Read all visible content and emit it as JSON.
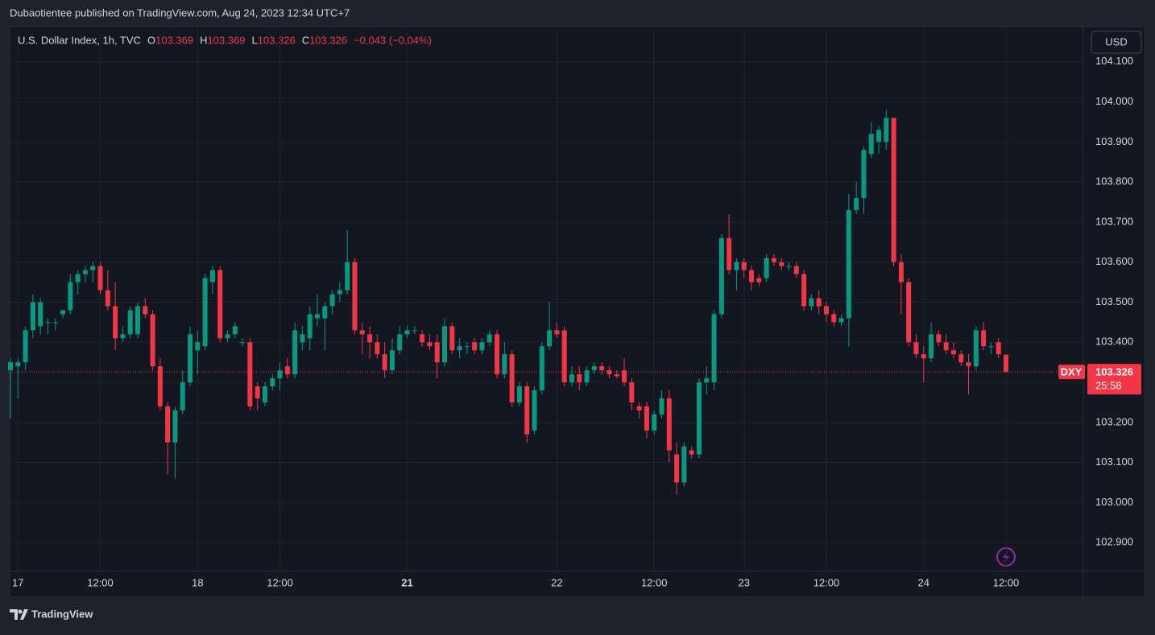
{
  "header": "Dubaotientee published on TradingView.com, Aug 24, 2023 12:34 UTC+7",
  "footer": "TradingView",
  "chart_data": {
    "type": "candlestick",
    "title": "U.S. Dollar Index, 1h, TVC",
    "legend_keys": [
      "O",
      "H",
      "L",
      "C"
    ],
    "change": "−0.043 (−0.04%)",
    "symbol": "DXY",
    "countdown": "25:58",
    "currency": "USD",
    "up_color": "#089981",
    "down_color": "#f23645",
    "grid": true,
    "categories": [
      null,
      "17",
      null,
      null,
      null,
      null,
      null,
      null,
      null,
      null,
      null,
      null,
      "12:00",
      null,
      null,
      null,
      null,
      null,
      null,
      null,
      null,
      null,
      null,
      null,
      null,
      "18",
      null,
      null,
      null,
      null,
      null,
      null,
      null,
      null,
      null,
      null,
      "12:00",
      null,
      null,
      null,
      null,
      null,
      null,
      null,
      null,
      null,
      null,
      null,
      null,
      null,
      null,
      null,
      null,
      "21",
      null,
      null,
      null,
      null,
      null,
      null,
      null,
      null,
      null,
      null,
      null,
      null,
      null,
      null,
      null,
      null,
      null,
      null,
      null,
      "22",
      null,
      null,
      null,
      null,
      null,
      null,
      null,
      null,
      null,
      null,
      null,
      null,
      "12:00",
      null,
      null,
      null,
      null,
      null,
      null,
      null,
      null,
      null,
      null,
      null,
      "23",
      null,
      null,
      null,
      null,
      null,
      null,
      null,
      null,
      null,
      null,
      "12:00",
      null,
      null,
      null,
      null,
      null,
      null,
      null,
      null,
      null,
      null,
      null,
      null,
      "24",
      null,
      null,
      null,
      null,
      null,
      null,
      null,
      null,
      null,
      null,
      "12:00"
    ],
    "bold_categories": [
      "21"
    ],
    "series": [
      {
        "open": [
          103.33,
          103.34,
          103.35,
          103.43,
          103.44,
          103.45,
          103.45,
          103.47,
          103.48,
          103.55,
          103.57,
          103.58,
          103.59,
          103.53,
          103.49,
          103.41,
          103.42,
          103.42,
          103.49,
          103.47,
          103.34,
          103.24,
          103.15,
          103.23,
          103.3,
          103.38,
          103.39,
          103.55,
          103.58,
          103.41,
          103.42,
          103.4,
          103.4,
          103.29,
          103.25,
          103.29,
          103.31,
          103.34,
          103.32,
          103.4,
          103.41,
          103.46,
          103.46,
          103.49,
          103.52,
          103.53,
          103.6,
          103.43,
          103.42,
          103.4,
          103.37,
          103.33,
          103.38,
          103.42,
          103.43,
          103.42,
          103.4,
          103.4,
          103.35,
          103.44,
          103.38,
          103.39,
          103.4,
          103.38,
          103.4,
          103.42,
          103.32,
          103.37,
          103.25,
          103.29,
          103.18,
          103.28,
          103.39,
          103.43,
          103.43,
          103.3,
          103.32,
          103.3,
          103.33,
          103.34,
          103.33,
          103.32,
          103.33,
          103.3,
          103.24,
          103.24,
          103.18,
          103.22,
          103.26,
          103.12,
          103.05,
          103.13,
          103.12,
          103.3,
          103.3,
          103.47,
          103.66,
          103.58,
          103.6,
          103.58,
          103.56,
          103.56,
          103.61,
          103.6,
          103.59,
          103.59,
          103.57,
          103.49,
          103.51,
          103.49,
          103.47,
          103.45,
          103.46,
          103.73,
          103.76,
          103.87,
          103.9,
          103.9,
          103.96,
          103.6,
          103.55,
          103.4,
          103.37,
          103.36,
          103.42,
          103.4,
          103.38,
          103.37,
          103.35,
          103.34,
          103.43,
          103.39,
          103.4,
          103.369
        ],
        "high": [
          103.36,
          103.36,
          103.44,
          103.52,
          103.51,
          103.46,
          103.46,
          103.48,
          103.57,
          103.58,
          103.59,
          103.6,
          103.6,
          103.58,
          103.55,
          103.44,
          103.49,
          103.5,
          103.51,
          103.48,
          103.36,
          103.25,
          103.24,
          103.33,
          103.44,
          103.43,
          103.57,
          103.59,
          103.59,
          103.43,
          103.45,
          103.41,
          103.41,
          103.3,
          103.3,
          103.32,
          103.35,
          103.36,
          103.45,
          103.44,
          103.49,
          103.52,
          103.5,
          103.53,
          103.55,
          103.68,
          103.61,
          103.45,
          103.44,
          103.42,
          103.4,
          103.41,
          103.44,
          103.44,
          103.44,
          103.43,
          103.42,
          103.42,
          103.46,
          103.45,
          103.41,
          103.4,
          103.41,
          103.41,
          103.43,
          103.43,
          103.4,
          103.38,
          103.3,
          103.3,
          103.29,
          103.4,
          103.5,
          103.45,
          103.44,
          103.34,
          103.34,
          103.34,
          103.35,
          103.35,
          103.34,
          103.33,
          103.36,
          103.31,
          103.25,
          103.25,
          103.23,
          103.28,
          103.28,
          103.15,
          103.15,
          103.14,
          103.31,
          103.34,
          103.48,
          103.67,
          103.72,
          103.61,
          103.61,
          103.59,
          103.57,
          103.62,
          103.62,
          103.61,
          103.6,
          103.6,
          103.58,
          103.52,
          103.53,
          103.5,
          103.48,
          103.47,
          103.77,
          103.8,
          103.89,
          103.95,
          103.94,
          103.98,
          103.96,
          103.62,
          103.56,
          103.42,
          103.39,
          103.45,
          103.43,
          103.42,
          103.4,
          103.38,
          103.37,
          103.44,
          103.45,
          103.4,
          103.41,
          103.369
        ],
        "low": [
          103.21,
          103.26,
          103.33,
          103.41,
          103.42,
          103.42,
          103.43,
          103.46,
          103.47,
          103.52,
          103.55,
          103.55,
          103.52,
          103.48,
          103.38,
          103.4,
          103.41,
          103.41,
          103.46,
          103.33,
          103.23,
          103.07,
          103.06,
          103.22,
          103.29,
          103.32,
          103.38,
          103.52,
          103.4,
          103.4,
          103.41,
          103.39,
          103.23,
          103.23,
          103.24,
          103.28,
          103.28,
          103.31,
          103.31,
          103.38,
          103.38,
          103.44,
          103.38,
          103.47,
          103.5,
          103.52,
          103.42,
          103.37,
          103.36,
          103.36,
          103.31,
          103.32,
          103.37,
          103.41,
          103.42,
          103.39,
          103.38,
          103.31,
          103.34,
          103.37,
          103.36,
          103.37,
          103.37,
          103.37,
          103.39,
          103.31,
          103.31,
          103.24,
          103.24,
          103.15,
          103.17,
          103.27,
          103.38,
          103.41,
          103.29,
          103.29,
          103.28,
          103.29,
          103.32,
          103.32,
          103.31,
          103.31,
          103.29,
          103.23,
          103.21,
          103.16,
          103.17,
          103.21,
          103.1,
          103.02,
          103.04,
          103.11,
          103.11,
          103.27,
          103.28,
          103.46,
          103.57,
          103.53,
          103.56,
          103.53,
          103.54,
          103.55,
          103.59,
          103.58,
          103.58,
          103.56,
          103.48,
          103.48,
          103.47,
          103.45,
          103.44,
          103.44,
          103.39,
          103.72,
          103.72,
          103.86,
          103.87,
          103.88,
          103.59,
          103.47,
          103.39,
          103.36,
          103.3,
          103.35,
          103.39,
          103.37,
          103.36,
          103.34,
          103.27,
          103.33,
          103.38,
          103.37,
          103.36,
          103.326
        ],
        "close": [
          103.35,
          103.35,
          103.43,
          103.5,
          103.5,
          103.45,
          103.45,
          103.48,
          103.55,
          103.57,
          103.58,
          103.59,
          103.53,
          103.49,
          103.41,
          103.42,
          103.48,
          103.49,
          103.47,
          103.34,
          103.24,
          103.15,
          103.23,
          103.3,
          103.42,
          103.4,
          103.56,
          103.58,
          103.41,
          103.42,
          103.44,
          103.4,
          103.24,
          103.26,
          103.29,
          103.31,
          103.33,
          103.32,
          103.43,
          103.42,
          103.47,
          103.47,
          103.49,
          103.52,
          103.53,
          103.6,
          103.43,
          103.42,
          103.4,
          103.37,
          103.33,
          103.38,
          103.42,
          103.43,
          103.43,
          103.4,
          103.39,
          103.35,
          103.44,
          103.38,
          103.39,
          103.39,
          103.38,
          103.4,
          103.42,
          103.32,
          103.37,
          103.25,
          103.29,
          103.17,
          103.28,
          103.39,
          103.43,
          103.42,
          103.3,
          103.32,
          103.3,
          103.33,
          103.34,
          103.33,
          103.32,
          103.315,
          103.3,
          103.25,
          103.23,
          103.18,
          103.22,
          103.26,
          103.13,
          103.05,
          103.14,
          103.12,
          103.3,
          103.31,
          103.47,
          103.66,
          103.58,
          103.6,
          103.58,
          103.55,
          103.55,
          103.61,
          103.6,
          103.59,
          103.59,
          103.57,
          103.49,
          103.51,
          103.49,
          103.47,
          103.45,
          103.46,
          103.73,
          103.76,
          103.88,
          103.92,
          103.93,
          103.96,
          103.6,
          103.55,
          103.4,
          103.37,
          103.36,
          103.42,
          103.4,
          103.38,
          103.37,
          103.35,
          103.34,
          103.43,
          103.39,
          103.39,
          103.37,
          103.326
        ]
      }
    ],
    "ylim": [
      102.828,
      104.188
    ],
    "yticks": [
      {
        "value": 102.9,
        "label": "102.900"
      },
      {
        "value": 103,
        "label": "103.000"
      },
      {
        "value": 103.1,
        "label": "103.100"
      },
      {
        "value": 103.2,
        "label": "103.200"
      },
      {
        "value": 103.3,
        "label": "103.300"
      },
      {
        "value": 103.4,
        "label": "103.400"
      },
      {
        "value": 103.5,
        "label": "103.500"
      },
      {
        "value": 103.6,
        "label": "103.600"
      },
      {
        "value": 103.7,
        "label": "103.700"
      },
      {
        "value": 103.8,
        "label": "103.800"
      },
      {
        "value": 103.9,
        "label": "103.900"
      },
      {
        "value": 104,
        "label": "104.000"
      },
      {
        "value": 104.1,
        "label": "104.100"
      }
    ]
  }
}
